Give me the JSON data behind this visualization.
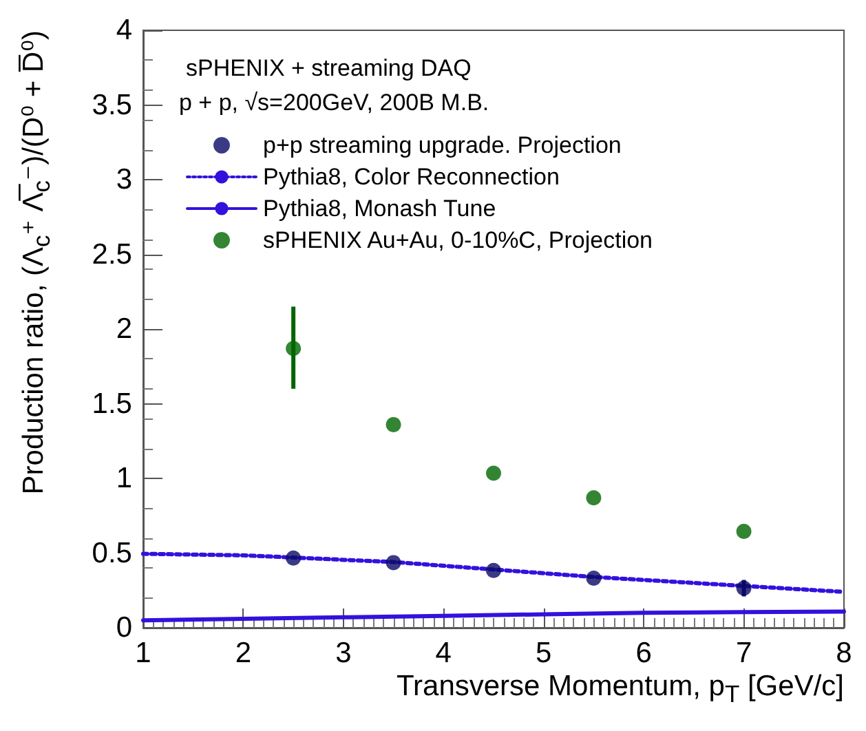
{
  "chart_data": {
    "type": "scatter",
    "title": "sPHENIX + streaming DAQ",
    "subtitle": "p + p, √s=200GeV, 200B M.B.",
    "xlabel": "Transverse Momentum, p$_{T}$ [GeV/c]",
    "ylabel": "Production ratio, (Λ$_{c}$⁺ Λ̅$_{c}$⁻)/(D⁰ + D̅⁰)",
    "xlim": [
      1,
      8
    ],
    "xticks": [
      1,
      2,
      3,
      4,
      5,
      6,
      7,
      8
    ],
    "ylim": [
      0,
      4
    ],
    "yticks": [
      0,
      0.5,
      1,
      1.5,
      2,
      2.5,
      3,
      3.5,
      4
    ],
    "grid": false,
    "legend": "top left",
    "series": [
      {
        "name": "p+p streaming upgrade. Projection",
        "marker": "circle",
        "color": "#0a0a66",
        "x": [
          2.5,
          3.5,
          4.5,
          5.5,
          7
        ],
        "values": [
          0.467,
          0.436,
          0.384,
          0.332,
          0.265
        ],
        "errors": [
          null,
          null,
          null,
          null,
          0.055
        ]
      },
      {
        "name": "Pythia8, Color Reconnection",
        "type": "line",
        "line_style": "dotted",
        "marker": "none",
        "color": "#3311dd",
        "x": [
          1,
          2,
          2.5,
          3.5,
          4.5,
          5.5,
          7,
          8
        ],
        "values": [
          0.495,
          0.485,
          0.47,
          0.44,
          0.39,
          0.34,
          0.28,
          0.24
        ]
      },
      {
        "name": "Pythia8, Monash Tune",
        "type": "line",
        "line_style": "solid",
        "marker": "none",
        "color": "#3311dd",
        "x": [
          1,
          2,
          3,
          4,
          5,
          6,
          7,
          8
        ],
        "values": [
          0.05,
          0.06,
          0.07,
          0.08,
          0.09,
          0.1,
          0.105,
          0.108
        ]
      },
      {
        "name": "sPHENIX Au+Au, 0-10%C, Projection",
        "marker": "circle",
        "color": "#006600",
        "x": [
          2.5,
          3.5,
          4.5,
          5.5,
          7
        ],
        "values": [
          1.87,
          1.36,
          1.035,
          0.87,
          0.645
        ],
        "errors": [
          [
            1.6,
            2.15
          ],
          null,
          null,
          null,
          null
        ]
      }
    ]
  }
}
